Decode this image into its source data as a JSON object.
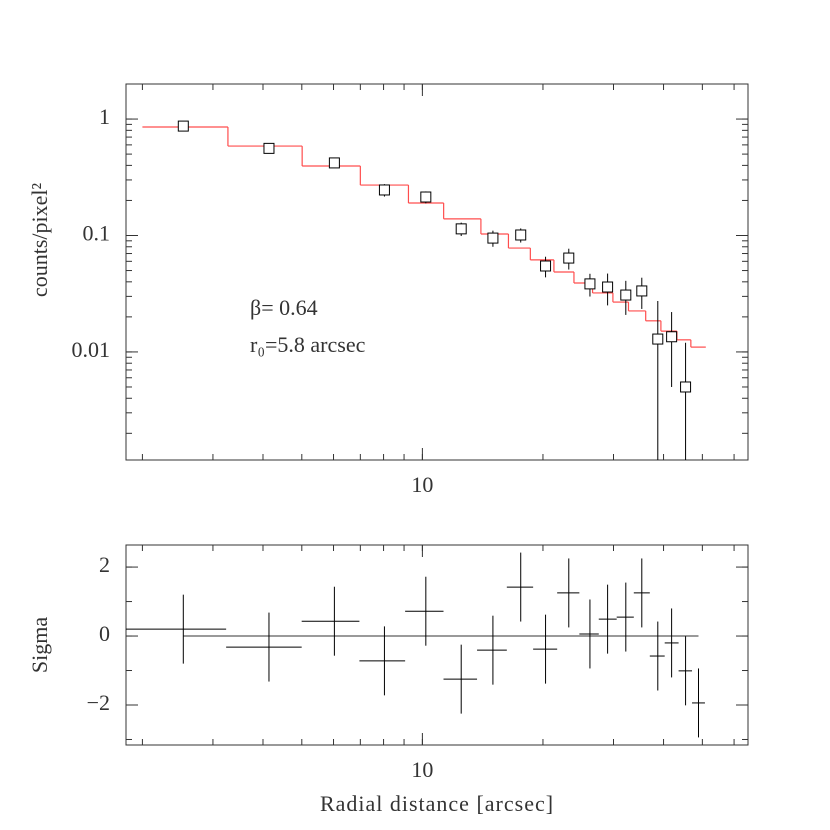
{
  "chart_data": [
    {
      "type": "scatter",
      "ylabel": "counts/pixel²",
      "log_x": true,
      "log_y": true,
      "xlim": [
        1.82,
        65
      ],
      "xticks": [
        10
      ],
      "ylim": [
        0.00118,
        2
      ],
      "yticks": [
        1,
        0.1,
        0.01
      ],
      "annotations": [
        "β= 0.64",
        "r₀=5.8 arcsec"
      ],
      "points": {
        "color": "#000000",
        "x": [
          2.53,
          4.14,
          6.03,
          8.04,
          10.2,
          12.5,
          15.0,
          17.6,
          20.3,
          23.2,
          26.2,
          29.0,
          32.2,
          35.3,
          38.7,
          41.9,
          45.4
        ],
        "values": [
          0.87,
          0.56,
          0.42,
          0.246,
          0.214,
          0.114,
          0.095,
          0.101,
          0.0547,
          0.064,
          0.0384,
          0.0361,
          0.0308,
          0.0334,
          0.0129,
          0.0135,
          0.005
        ],
        "errors": [
          0.04,
          0.03,
          0.025,
          0.03,
          0.025,
          0.015,
          0.015,
          0.014,
          0.011,
          0.013,
          0.0085,
          0.011,
          0.01,
          0.01,
          0.0145,
          0.0085,
          0.007
        ]
      },
      "model": {
        "color": "#ff4d4d",
        "bins": [
          2.0,
          3.27,
          5.01,
          7.0,
          9.23,
          11.3,
          14.0,
          16.4,
          18.6,
          21.3,
          23.9,
          26.6,
          29.9,
          32.7,
          36.1,
          39.4,
          43.2,
          46.8,
          51.0
        ],
        "values": [
          0.854,
          0.586,
          0.395,
          0.271,
          0.19,
          0.139,
          0.103,
          0.078,
          0.0617,
          0.0486,
          0.0391,
          0.0321,
          0.0268,
          0.0225,
          0.0185,
          0.0151,
          0.0127,
          0.011
        ]
      }
    },
    {
      "type": "scatter",
      "ylabel": "Sigma",
      "xlabel": "Radial distance [arcsec]",
      "log_x": true,
      "log_y": false,
      "xlim": [
        1.82,
        65
      ],
      "xticks": [
        10
      ],
      "ylim": [
        -3.16,
        2.64
      ],
      "yticks": [
        2,
        0,
        {
          "value": -2,
          "label": "−2"
        }
      ],
      "points": {
        "color": "#000000",
        "x": [
          2.53,
          4.14,
          6.03,
          8.04,
          10.2,
          12.5,
          15.0,
          17.6,
          20.3,
          23.2,
          26.2,
          29.0,
          32.2,
          35.3,
          38.7,
          41.9,
          45.4,
          48.9
        ],
        "values": [
          0.2,
          -0.32,
          0.43,
          -0.72,
          0.72,
          -1.25,
          -0.41,
          1.42,
          -0.38,
          1.25,
          0.06,
          0.49,
          0.55,
          1.25,
          -0.58,
          -0.2,
          -1.01,
          -1.94
        ],
        "errors": [
          1,
          1,
          1,
          1,
          1,
          1,
          1,
          1,
          1,
          1,
          1,
          1,
          1,
          1,
          1,
          1,
          1,
          1
        ]
      }
    }
  ]
}
